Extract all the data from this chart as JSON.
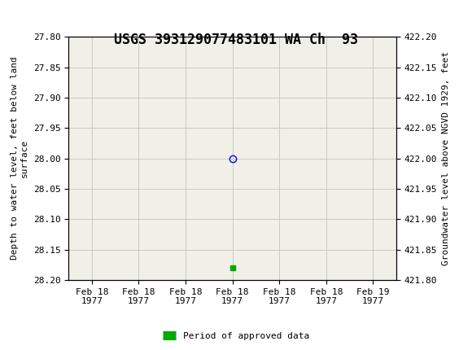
{
  "title": "USGS 393129077483101 WA Ch  93",
  "header_bg_color": "#1a6b3c",
  "fig_bg_color": "#ffffff",
  "plot_bg_color": "#f0f0e8",
  "grid_color": "#c8c8c8",
  "ylabel_left": "Depth to water level, feet below land\nsurface",
  "ylabel_right": "Groundwater level above NGVD 1929, feet",
  "ylim_left_top": 27.8,
  "ylim_left_bottom": 28.2,
  "ylim_right_top": 422.2,
  "ylim_right_bottom": 421.8,
  "yticks_left": [
    27.8,
    27.85,
    27.9,
    27.95,
    28.0,
    28.05,
    28.1,
    28.15,
    28.2
  ],
  "yticks_right": [
    421.8,
    421.85,
    421.9,
    421.95,
    422.0,
    422.05,
    422.1,
    422.15,
    422.2
  ],
  "xlim": [
    -0.5,
    6.5
  ],
  "xtick_labels": [
    "Feb 18\n1977",
    "Feb 18\n1977",
    "Feb 18\n1977",
    "Feb 18\n1977",
    "Feb 18\n1977",
    "Feb 18\n1977",
    "Feb 19\n1977"
  ],
  "xtick_positions": [
    0,
    1,
    2,
    3,
    4,
    5,
    6
  ],
  "data_point_x": 3,
  "data_point_y": 28.0,
  "bar_x": 3,
  "bar_y": 28.18,
  "bar_color": "#00aa00",
  "legend_label": "Period of approved data",
  "font_family": "monospace",
  "title_fontsize": 12,
  "label_fontsize": 8,
  "tick_fontsize": 8
}
